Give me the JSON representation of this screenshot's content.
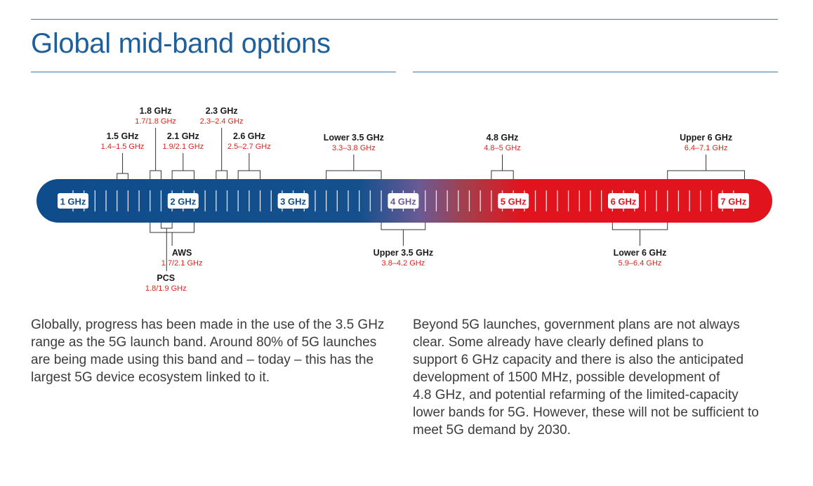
{
  "page": {
    "title": "Global mid-band options"
  },
  "colors": {
    "accent_blue": "#0f4c8c",
    "accent_red": "#e1141e",
    "label_red": "#d9251c",
    "rule_blue": "#3a79ad"
  },
  "spectrum": {
    "markers": [
      {
        "label": "1 GHz",
        "ghz": 1
      },
      {
        "label": "2 GHz",
        "ghz": 2
      },
      {
        "label": "3 GHz",
        "ghz": 3
      },
      {
        "label": "4 GHz",
        "ghz": 4
      },
      {
        "label": "5 GHz",
        "ghz": 5
      },
      {
        "label": "6 GHz",
        "ghz": 6
      },
      {
        "label": "7 GHz",
        "ghz": 7
      }
    ],
    "bands_above": [
      {
        "name": "1.8 GHz",
        "range": "1.7/1.8 GHz",
        "from": 1.7,
        "to": 1.8
      },
      {
        "name": "2.3 GHz",
        "range": "2.3–2.4 GHz",
        "from": 2.3,
        "to": 2.4
      },
      {
        "name": "1.5 GHz",
        "range": "1.4–1.5 GHz",
        "from": 1.4,
        "to": 1.5
      },
      {
        "name": "2.1 GHz",
        "range": "1.9/2.1 GHz",
        "from": 1.9,
        "to": 2.1
      },
      {
        "name": "2.6 GHz",
        "range": "2.5–2.7 GHz",
        "from": 2.5,
        "to": 2.7
      },
      {
        "name": "Lower 3.5 GHz",
        "range": "3.3–3.8 GHz",
        "from": 3.3,
        "to": 3.8
      },
      {
        "name": "4.8 GHz",
        "range": "4.8–5 GHz",
        "from": 4.8,
        "to": 5.0
      },
      {
        "name": "Upper 6 GHz",
        "range": "6.4–7.1 GHz",
        "from": 6.4,
        "to": 7.1
      }
    ],
    "bands_below": [
      {
        "name": "AWS",
        "range": "1.7/2.1 GHz",
        "from": 1.7,
        "to": 2.1
      },
      {
        "name": "PCS",
        "range": "1.8/1.9 GHz",
        "from": 1.8,
        "to": 1.9
      },
      {
        "name": "Upper 3.5 GHz",
        "range": "3.8–4.2 GHz",
        "from": 3.8,
        "to": 4.2
      },
      {
        "name": "Lower 6 GHz",
        "range": "5.9–6.4 GHz",
        "from": 5.9,
        "to": 6.4
      }
    ]
  },
  "text_left": [
    "Globally, progress has been made in the use of the 3.5 GHz",
    "range as the 5G launch band. Around 80% of 5G launches",
    "are being made using this band and – today – this has the",
    "largest 5G device ecosystem linked to it."
  ],
  "text_right": [
    "Beyond 5G launches, government plans are not always",
    "clear. Some already have clearly defined plans to",
    "support 6 GHz capacity and there is also the anticipated",
    "development of 1500 MHz, possible development of",
    "4.8 GHz, and potential refarming of the limited-capacity",
    "lower bands for 5G. However, these will not be sufficient to",
    "meet 5G demand by 2030."
  ]
}
